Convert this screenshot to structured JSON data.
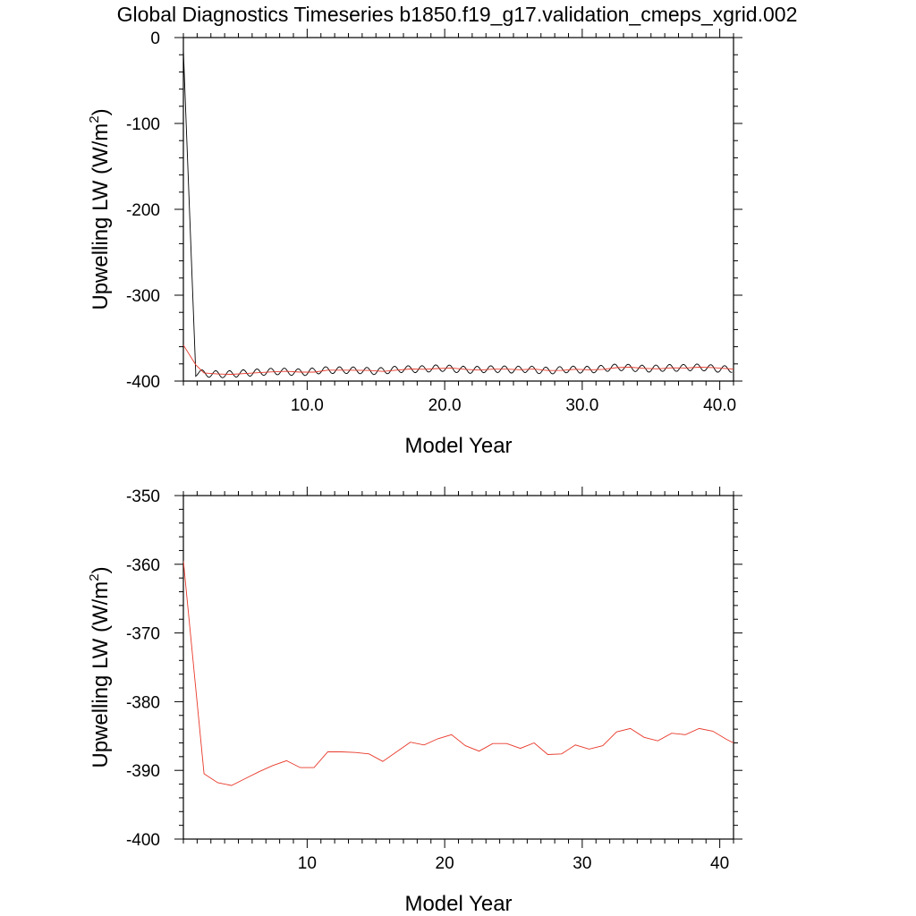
{
  "title": "Global Diagnostics Timeseries b1850.f19_g17.validation_cmeps_xgrid.002",
  "chart_data": [
    {
      "type": "line",
      "xlabel": "Model Year",
      "ylabel": "Upwelling LW (W/m",
      "ylabel_sup": "2",
      "ylabel_close": ")",
      "xlim": [
        1,
        41
      ],
      "ylim": [
        -400,
        0
      ],
      "yticks": [
        0,
        -100,
        -200,
        -300,
        -400
      ],
      "yticklabels": [
        "0",
        "-100",
        "-200",
        "-300",
        "-400"
      ],
      "xticks": [
        10,
        20,
        30,
        40
      ],
      "xticklabels": [
        "10.0",
        "20.0",
        "30.0",
        "40.0"
      ],
      "grid": false,
      "series": [
        {
          "color": "#000000",
          "kind": "monthly",
          "start": {
            "x": 1.0,
            "y": -15
          },
          "drop_to": {
            "x": 1.9,
            "y": -390
          },
          "monthly_amplitude": 4,
          "annual_base": [
            -391.0,
            -390.5,
            -391.8,
            -392.2,
            -391.2,
            -390.2,
            -389.3,
            -388.6,
            -389.6,
            -389.6,
            -387.3,
            -387.3,
            -387.4,
            -387.6,
            -388.7,
            -387.3,
            -385.9,
            -386.3,
            -385.4,
            -384.8,
            -386.4,
            -387.2,
            -386.1,
            -386.1,
            -386.8,
            -386.0,
            -387.7,
            -387.6,
            -386.3,
            -386.9,
            -386.4,
            -384.4,
            -383.9,
            -385.2,
            -385.7,
            -384.6,
            -384.8,
            -383.9,
            -384.3,
            -386.0,
            -386.0
          ]
        },
        {
          "color": "#e8392a",
          "kind": "annual",
          "x": [
            1.0,
            1.9,
            2.5,
            3.5,
            4.5,
            5.5,
            6.5,
            7.5,
            8.5,
            9.5,
            10.5,
            11.5,
            12.5,
            13.5,
            14.5,
            15.5,
            16.5,
            17.5,
            18.5,
            19.5,
            20.5,
            21.5,
            22.5,
            23.5,
            24.5,
            25.5,
            26.5,
            27.5,
            28.5,
            29.5,
            30.5,
            31.5,
            32.5,
            33.5,
            34.5,
            35.5,
            36.5,
            37.5,
            38.5,
            39.5,
            40.5,
            41.0
          ],
          "values": [
            -358,
            -381,
            -390.5,
            -391.8,
            -392.2,
            -391.2,
            -390.2,
            -389.3,
            -388.6,
            -389.6,
            -389.6,
            -387.3,
            -387.3,
            -387.4,
            -387.6,
            -388.7,
            -387.3,
            -385.9,
            -386.3,
            -385.4,
            -384.8,
            -386.4,
            -387.2,
            -386.1,
            -386.1,
            -386.8,
            -386.0,
            -387.7,
            -387.6,
            -386.3,
            -386.9,
            -386.4,
            -384.4,
            -383.9,
            -385.2,
            -385.7,
            -384.6,
            -384.8,
            -383.9,
            -384.3,
            -385.5,
            -386.0
          ]
        }
      ]
    },
    {
      "type": "line",
      "xlabel": "Model Year",
      "ylabel": "Upwelling LW (W/m",
      "ylabel_sup": "2",
      "ylabel_close": ")",
      "xlim": [
        1,
        41
      ],
      "ylim": [
        -400,
        -350
      ],
      "yticks": [
        -350,
        -360,
        -370,
        -380,
        -390,
        -400
      ],
      "yticklabels": [
        "-350",
        "-360",
        "-370",
        "-380",
        "-390",
        "-400"
      ],
      "xticks": [
        10,
        20,
        30,
        40
      ],
      "xticklabels": [
        "10",
        "20",
        "30",
        "40"
      ],
      "grid": false,
      "series": [
        {
          "color": "#e8392a",
          "kind": "annual",
          "x": [
            1.0,
            2.5,
            3.5,
            4.5,
            5.5,
            6.5,
            7.5,
            8.5,
            9.5,
            10.5,
            11.5,
            12.5,
            13.5,
            14.5,
            15.5,
            16.5,
            17.5,
            18.5,
            19.5,
            20.5,
            21.5,
            22.5,
            23.5,
            24.5,
            25.5,
            26.5,
            27.5,
            28.5,
            29.5,
            30.5,
            31.5,
            32.5,
            33.5,
            34.5,
            35.5,
            36.5,
            37.5,
            38.5,
            39.5,
            40.5,
            41.0
          ],
          "values": [
            -359.5,
            -390.5,
            -391.8,
            -392.2,
            -391.2,
            -390.2,
            -389.3,
            -388.6,
            -389.6,
            -389.6,
            -387.3,
            -387.3,
            -387.4,
            -387.6,
            -388.7,
            -387.3,
            -385.9,
            -386.3,
            -385.4,
            -384.8,
            -386.4,
            -387.2,
            -386.1,
            -386.1,
            -386.8,
            -386.0,
            -387.7,
            -387.6,
            -386.3,
            -386.9,
            -386.4,
            -384.4,
            -383.9,
            -385.2,
            -385.7,
            -384.6,
            -384.8,
            -383.9,
            -384.3,
            -385.5,
            -386.0
          ]
        }
      ]
    }
  ]
}
